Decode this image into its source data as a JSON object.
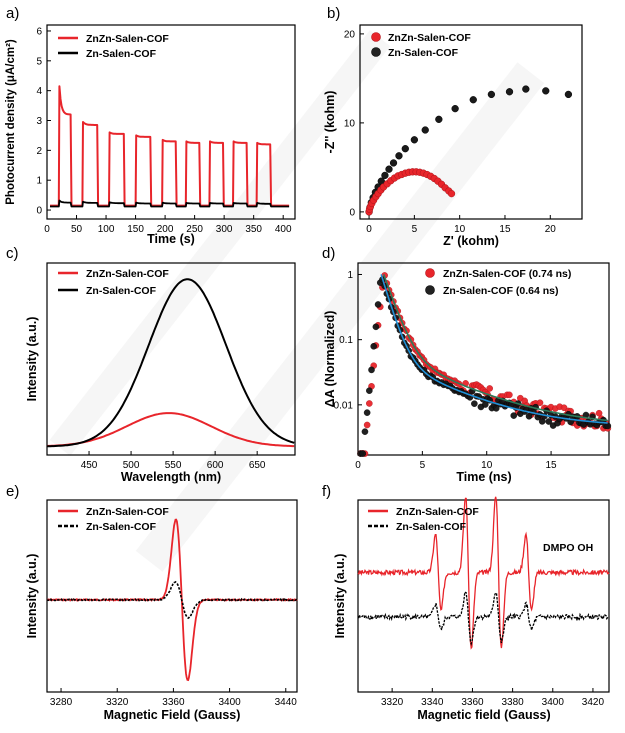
{
  "colors": {
    "red": "#e8252b",
    "black": "#000000",
    "fit": "#1f8fd6",
    "fit2": "#2c7a5a",
    "watermark": "#d9d9d9"
  },
  "chart_data": [
    {
      "panel": "a)",
      "type": "line",
      "xlabel": "Time (s)",
      "ylabel": "Photocurrent density (μA/cm²)",
      "xlim": [
        0,
        420
      ],
      "ylim": [
        -0.3,
        6.2
      ],
      "xticks": [
        0,
        50,
        100,
        150,
        200,
        250,
        300,
        350,
        400
      ],
      "yticks": [
        0,
        1,
        2,
        3,
        4,
        5,
        6
      ],
      "legend": "top-left",
      "series": [
        {
          "name": "ZnZn-Salen-COF",
          "color": "red",
          "on_start": [
            20,
            60,
            105,
            150,
            195,
            235,
            275,
            315,
            355
          ],
          "on_end": [
            40,
            85,
            130,
            175,
            218,
            258,
            298,
            338,
            378
          ],
          "on_peak": [
            4.15,
            2.95,
            2.6,
            2.5,
            2.35,
            2.3,
            2.3,
            2.3,
            2.25
          ],
          "on_plateau": [
            3.2,
            2.85,
            2.55,
            2.45,
            2.3,
            2.25,
            2.25,
            2.25,
            2.2
          ],
          "off_level": 0.15
        },
        {
          "name": "Zn-Salen-COF",
          "color": "black",
          "on_start": [
            20,
            60,
            105,
            150,
            195,
            235,
            275,
            315,
            355
          ],
          "on_end": [
            40,
            85,
            130,
            175,
            218,
            258,
            298,
            338,
            378
          ],
          "on_peak": [
            0.32,
            0.28,
            0.26,
            0.25,
            0.25,
            0.24,
            0.24,
            0.24,
            0.24
          ],
          "on_plateau": [
            0.25,
            0.24,
            0.23,
            0.22,
            0.22,
            0.22,
            0.22,
            0.22,
            0.21
          ],
          "off_level": 0.12
        }
      ]
    },
    {
      "panel": "b)",
      "type": "scatter",
      "xlabel": "Z' (kohm)",
      "ylabel": "-Z'' (kohm)",
      "xlim": [
        -1,
        23.5
      ],
      "ylim": [
        -0.8,
        21
      ],
      "xticks": [
        0,
        5,
        10,
        15,
        20
      ],
      "yticks": [
        0,
        10,
        20
      ],
      "legend": "top-left",
      "series": [
        {
          "name": "ZnZn-Salen-COF",
          "color": "red",
          "x": [
            0.0,
            0.05,
            0.15,
            0.3,
            0.5,
            0.75,
            1.0,
            1.3,
            1.6,
            2.0,
            2.4,
            2.8,
            3.2,
            3.6,
            4.0,
            4.4,
            4.8,
            5.2,
            5.6,
            6.0,
            6.4,
            6.8,
            7.2,
            7.6,
            8.0,
            8.4,
            8.8,
            9.1
          ],
          "y": [
            0.0,
            0.3,
            0.6,
            0.95,
            1.3,
            1.7,
            2.05,
            2.45,
            2.8,
            3.15,
            3.5,
            3.8,
            4.05,
            4.2,
            4.35,
            4.45,
            4.5,
            4.5,
            4.45,
            4.35,
            4.2,
            4.0,
            3.75,
            3.45,
            3.1,
            2.7,
            2.35,
            2.05
          ]
        },
        {
          "name": "Zn-Salen-COF",
          "color": "black",
          "x": [
            0.0,
            0.1,
            0.25,
            0.45,
            0.7,
            1.0,
            1.35,
            1.75,
            2.2,
            2.7,
            3.3,
            4.0,
            5.0,
            6.2,
            7.7,
            9.5,
            11.5,
            13.5,
            15.5,
            17.3,
            19.5,
            22.0
          ],
          "y": [
            0.0,
            0.5,
            1.05,
            1.6,
            2.2,
            2.8,
            3.45,
            4.1,
            4.8,
            5.5,
            6.3,
            7.1,
            8.1,
            9.2,
            10.4,
            11.6,
            12.6,
            13.2,
            13.5,
            13.8,
            13.6,
            13.2
          ]
        }
      ]
    },
    {
      "panel": "c)",
      "type": "line",
      "xlabel": "Wavelength (nm)",
      "ylabel": "Intensity (a.u.)",
      "xlim": [
        400,
        695
      ],
      "ylim": [
        0,
        1.1
      ],
      "xticks": [
        450,
        500,
        550,
        600,
        650
      ],
      "legend": "top-left",
      "series": [
        {
          "name": "ZnZn-Salen-COF",
          "color": "red",
          "center": 545,
          "sigma": 50,
          "amp": 0.2
        },
        {
          "name": "Zn-Salen-COF",
          "color": "black",
          "center": 567,
          "sigma": 46,
          "amp": 1.0
        }
      ]
    },
    {
      "panel": "d)",
      "type": "scatter",
      "xlabel": "Time (ns)",
      "ylabel": "ΔA (Normalized)",
      "xlim": [
        0,
        19.5
      ],
      "ylog": [
        0.0017,
        1.5
      ],
      "xticks": [
        0,
        5,
        10,
        15
      ],
      "yticks": [
        1,
        0.1,
        0.01
      ],
      "ytick_labels": [
        "1",
        "0.1",
        "0.01"
      ],
      "legend": "top-right",
      "series": [
        {
          "name": "ZnZn-Salen-COF (0.74 ns)",
          "color": "red",
          "rise_start": 0.6,
          "peak_t": 2.0,
          "tau_fast": 0.74,
          "tau_slow": 4.5,
          "slow_frac": 0.06,
          "floor": 0.0045
        },
        {
          "name": "Zn-Salen-COF (0.64 ns)",
          "color": "black",
          "rise_start": 0.5,
          "peak_t": 1.8,
          "tau_fast": 0.64,
          "tau_slow": 4.2,
          "slow_frac": 0.05,
          "floor": 0.0045
        }
      ]
    },
    {
      "panel": "e)",
      "type": "line",
      "xlabel": "Magnetic Field (Gauss)",
      "ylabel": "Intensity (a.u.)",
      "xlim": [
        3270,
        3448
      ],
      "xticks": [
        3280,
        3320,
        3360,
        3400,
        3440
      ],
      "legend": "top-left",
      "series": [
        {
          "name": "ZnZn-Salen-COF",
          "color": "red",
          "center": 3366,
          "width": 4.2,
          "amp": 1.0
        },
        {
          "name": "Zn-Salen-COF",
          "color": "black",
          "center": 3366,
          "width": 4.5,
          "amp": 0.22
        }
      ]
    },
    {
      "panel": "f)",
      "type": "line",
      "xlabel": "Magnetic field (Gauss)",
      "ylabel": "Intensity (a.u.)",
      "xlim": [
        3303,
        3428
      ],
      "xticks": [
        3320,
        3340,
        3360,
        3380,
        3400,
        3420
      ],
      "legend": "top-left",
      "annotation": "DMPO OH",
      "series": [
        {
          "name": "ZnZn-Salen-COF",
          "color": "red",
          "lines": [
            3343,
            3358,
            3373,
            3388
          ],
          "amps": [
            1.0,
            2.0,
            2.0,
            1.0
          ],
          "scale": 1.0,
          "offset": 0.62
        },
        {
          "name": "Zn-Salen-COF",
          "color": "black",
          "lines": [
            3343,
            3358,
            3373,
            3388
          ],
          "amps": [
            1.0,
            2.0,
            2.0,
            1.0
          ],
          "scale": 0.33,
          "offset": -0.55
        }
      ]
    }
  ]
}
